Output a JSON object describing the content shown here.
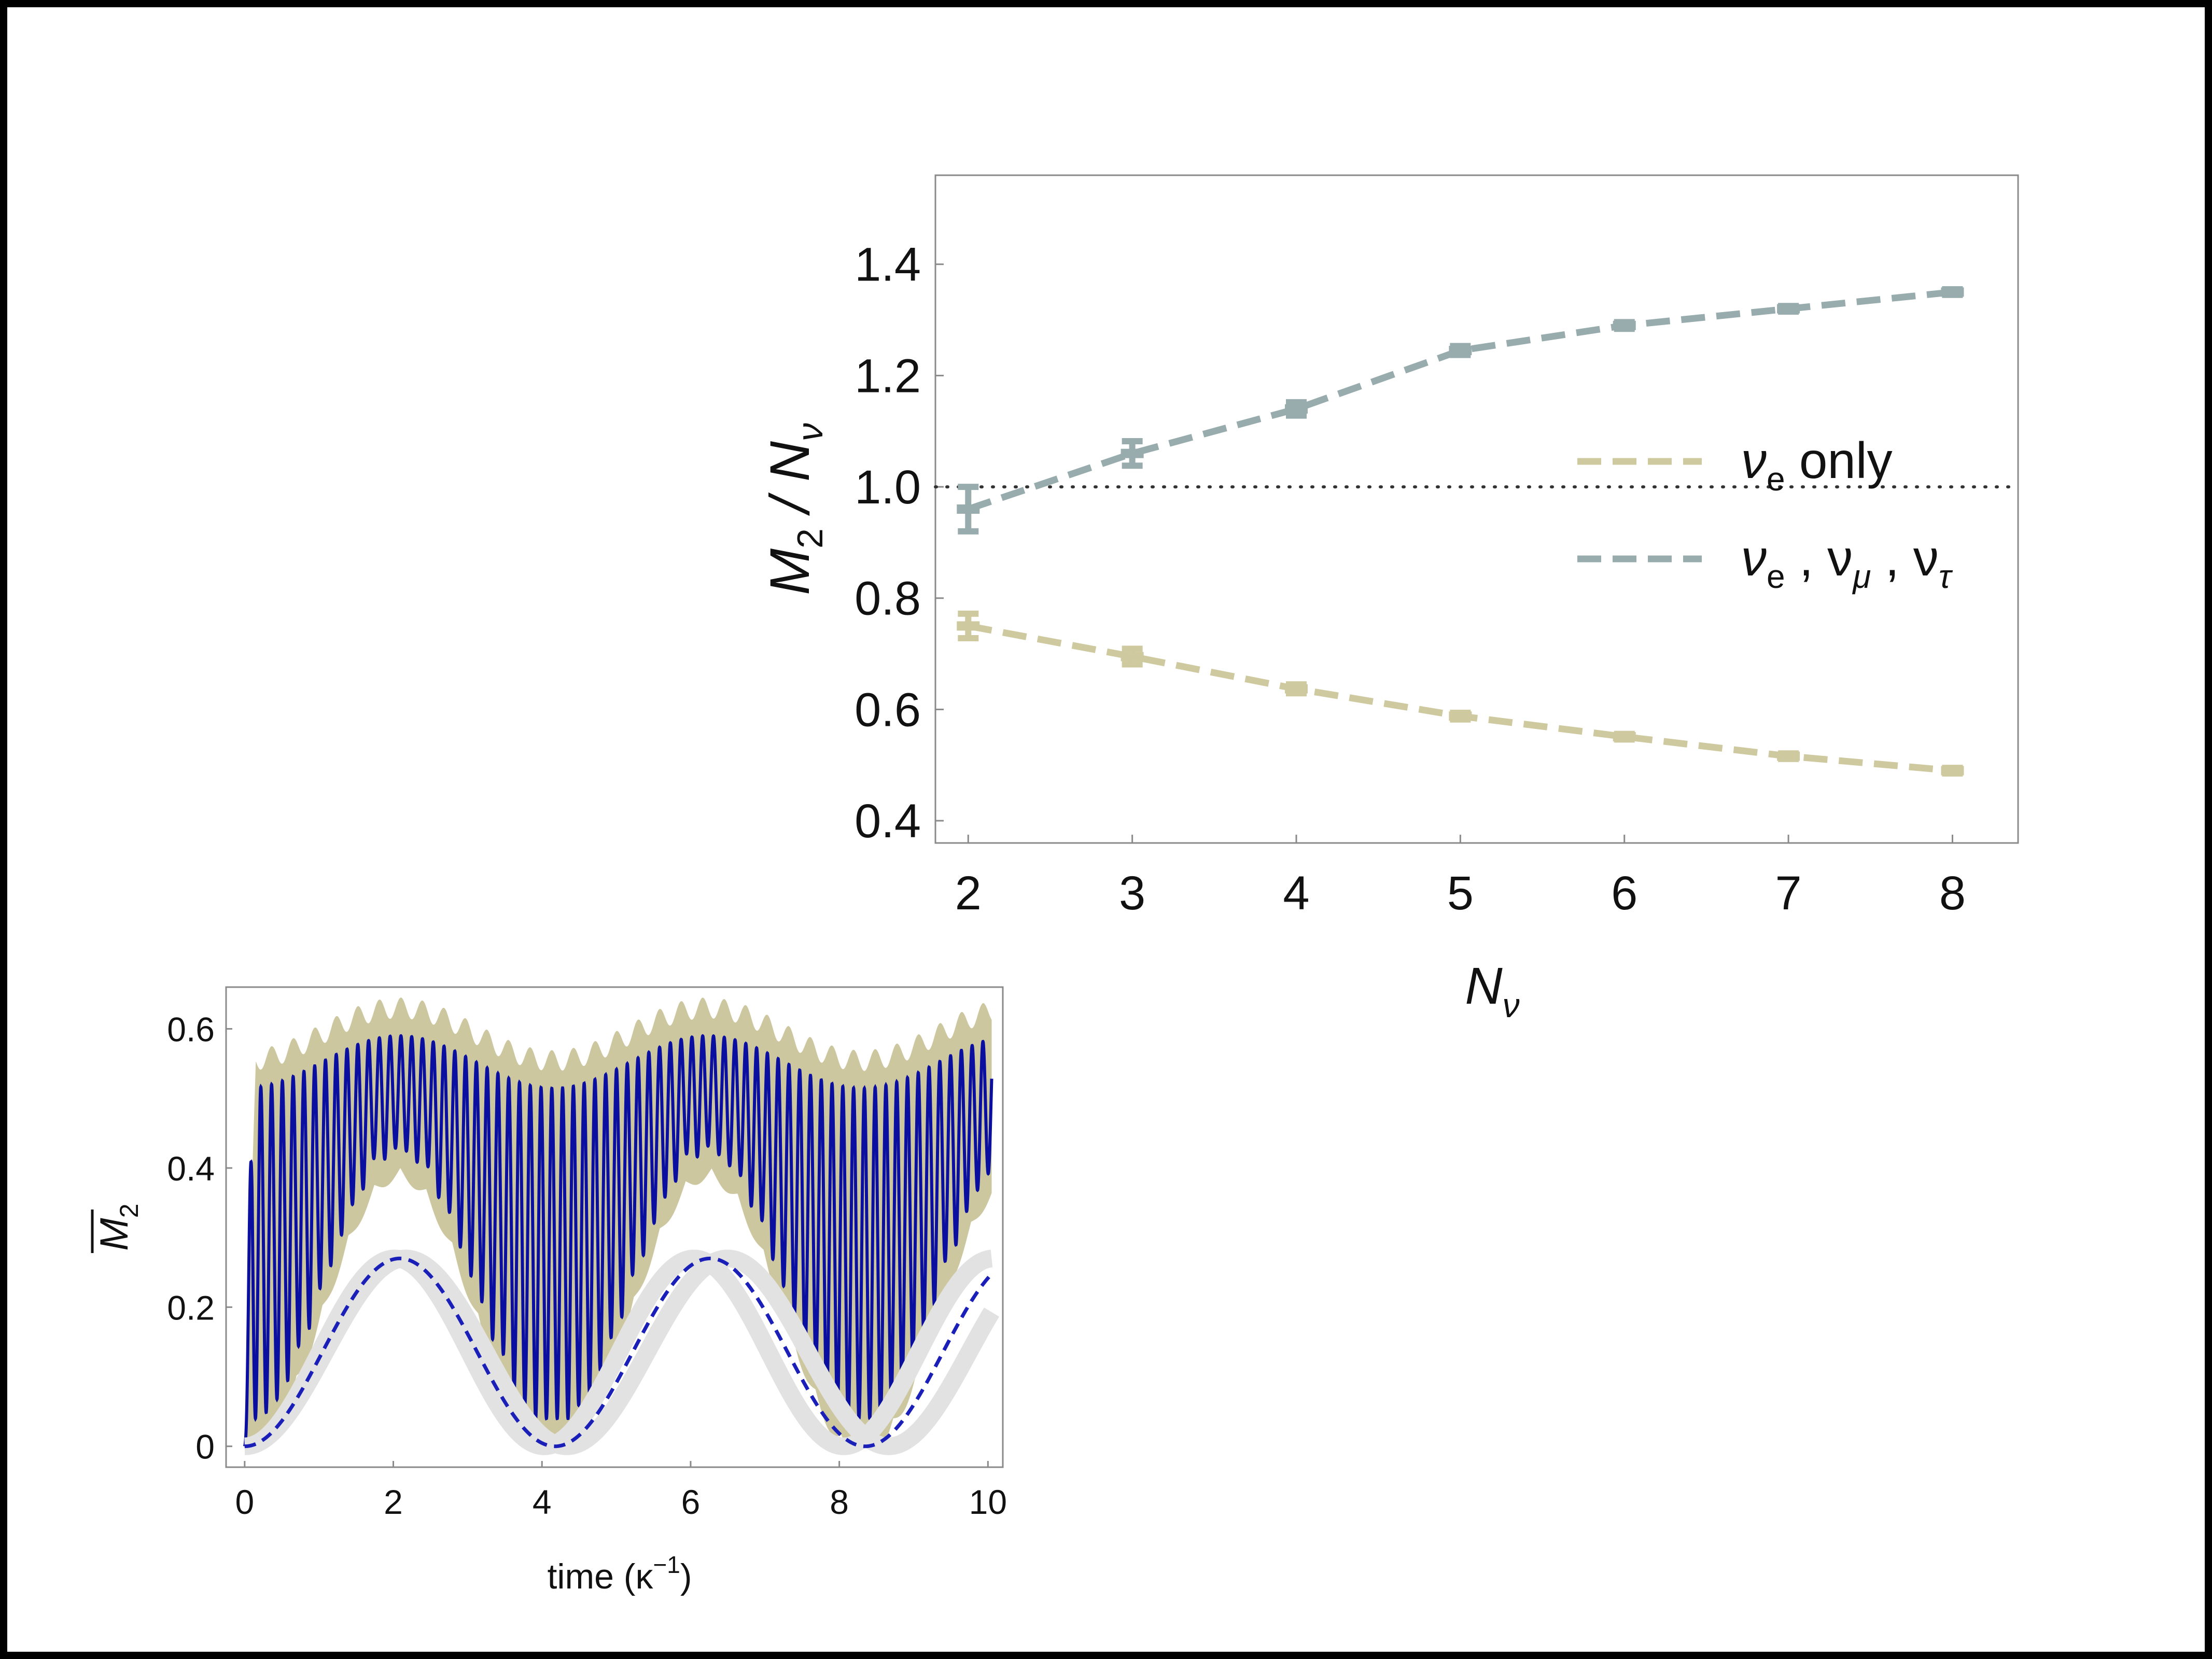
{
  "chart_data": [
    {
      "type": "line",
      "xlabel": "N",
      "xlabel_sub": "ν",
      "ylabel": "M",
      "ylabel_sub": "2",
      "ylabel_rest": " / N",
      "ylabel_rest_sub": "ν",
      "xlim": [
        1.8,
        8.4
      ],
      "ylim": [
        0.36,
        1.56
      ],
      "xticks": [
        2,
        3,
        4,
        5,
        6,
        7,
        8
      ],
      "yticks": [
        "0.4",
        "0.6",
        "0.8",
        "1.0",
        "1.2",
        "1.4"
      ],
      "reference_line": {
        "y": 1.0,
        "style": "dotted"
      },
      "legend": {
        "placement": "right",
        "entries": [
          {
            "label": "ν",
            "sub": "e",
            "suffix": " only",
            "color": "#cfc9a0"
          },
          {
            "label": "ν",
            "sub": "e",
            "suffix": " , ν",
            "sub2": "μ",
            "suffix2": " , ν",
            "sub3": "τ",
            "color": "#98acae"
          }
        ]
      },
      "series": [
        {
          "color": "#cfc9a0",
          "x": [
            2,
            3,
            4,
            5,
            6,
            7,
            8
          ],
          "y": [
            0.75,
            0.695,
            0.637,
            0.588,
            0.551,
            0.516,
            0.49
          ],
          "err": [
            0.022,
            0.014,
            0.008,
            0.006,
            0.005,
            0.005,
            0.005
          ]
        },
        {
          "color": "#98acae",
          "x": [
            2,
            3,
            4,
            5,
            6,
            7,
            8
          ],
          "y": [
            0.96,
            1.06,
            1.14,
            1.245,
            1.29,
            1.32,
            1.35
          ],
          "err": [
            0.04,
            0.022,
            0.012,
            0.008,
            0.006,
            0.005,
            0.005
          ]
        }
      ]
    },
    {
      "type": "line",
      "xlabel": "time (κ",
      "xlabel_sup": "−1",
      "xlabel_end": ")",
      "ylabel": "M",
      "ylabel_sub": "2",
      "xlim": [
        -0.25,
        10.2
      ],
      "ylim": [
        -0.03,
        0.66
      ],
      "xticks": [
        "0",
        "2",
        "4",
        "6",
        "8",
        "10"
      ],
      "yticks": [
        "0",
        "0.2",
        "0.4",
        "0.6"
      ],
      "series": [
        {
          "style": "filled band, fast oscillation",
          "color": "#cdc7a0",
          "max": 0.63
        },
        {
          "style": "solid, fast oscillation",
          "color": "#0a0fa0",
          "max": 0.63
        },
        {
          "style": "thick light band",
          "color": "#e2e2e2",
          "max": 0.27
        },
        {
          "style": "dashed",
          "color": "#1a1fb8",
          "peaks_x": [
            2.1,
            6.2
          ],
          "zeros_x": [
            0,
            4.15,
            8.35
          ],
          "max": 0.27
        }
      ]
    }
  ]
}
